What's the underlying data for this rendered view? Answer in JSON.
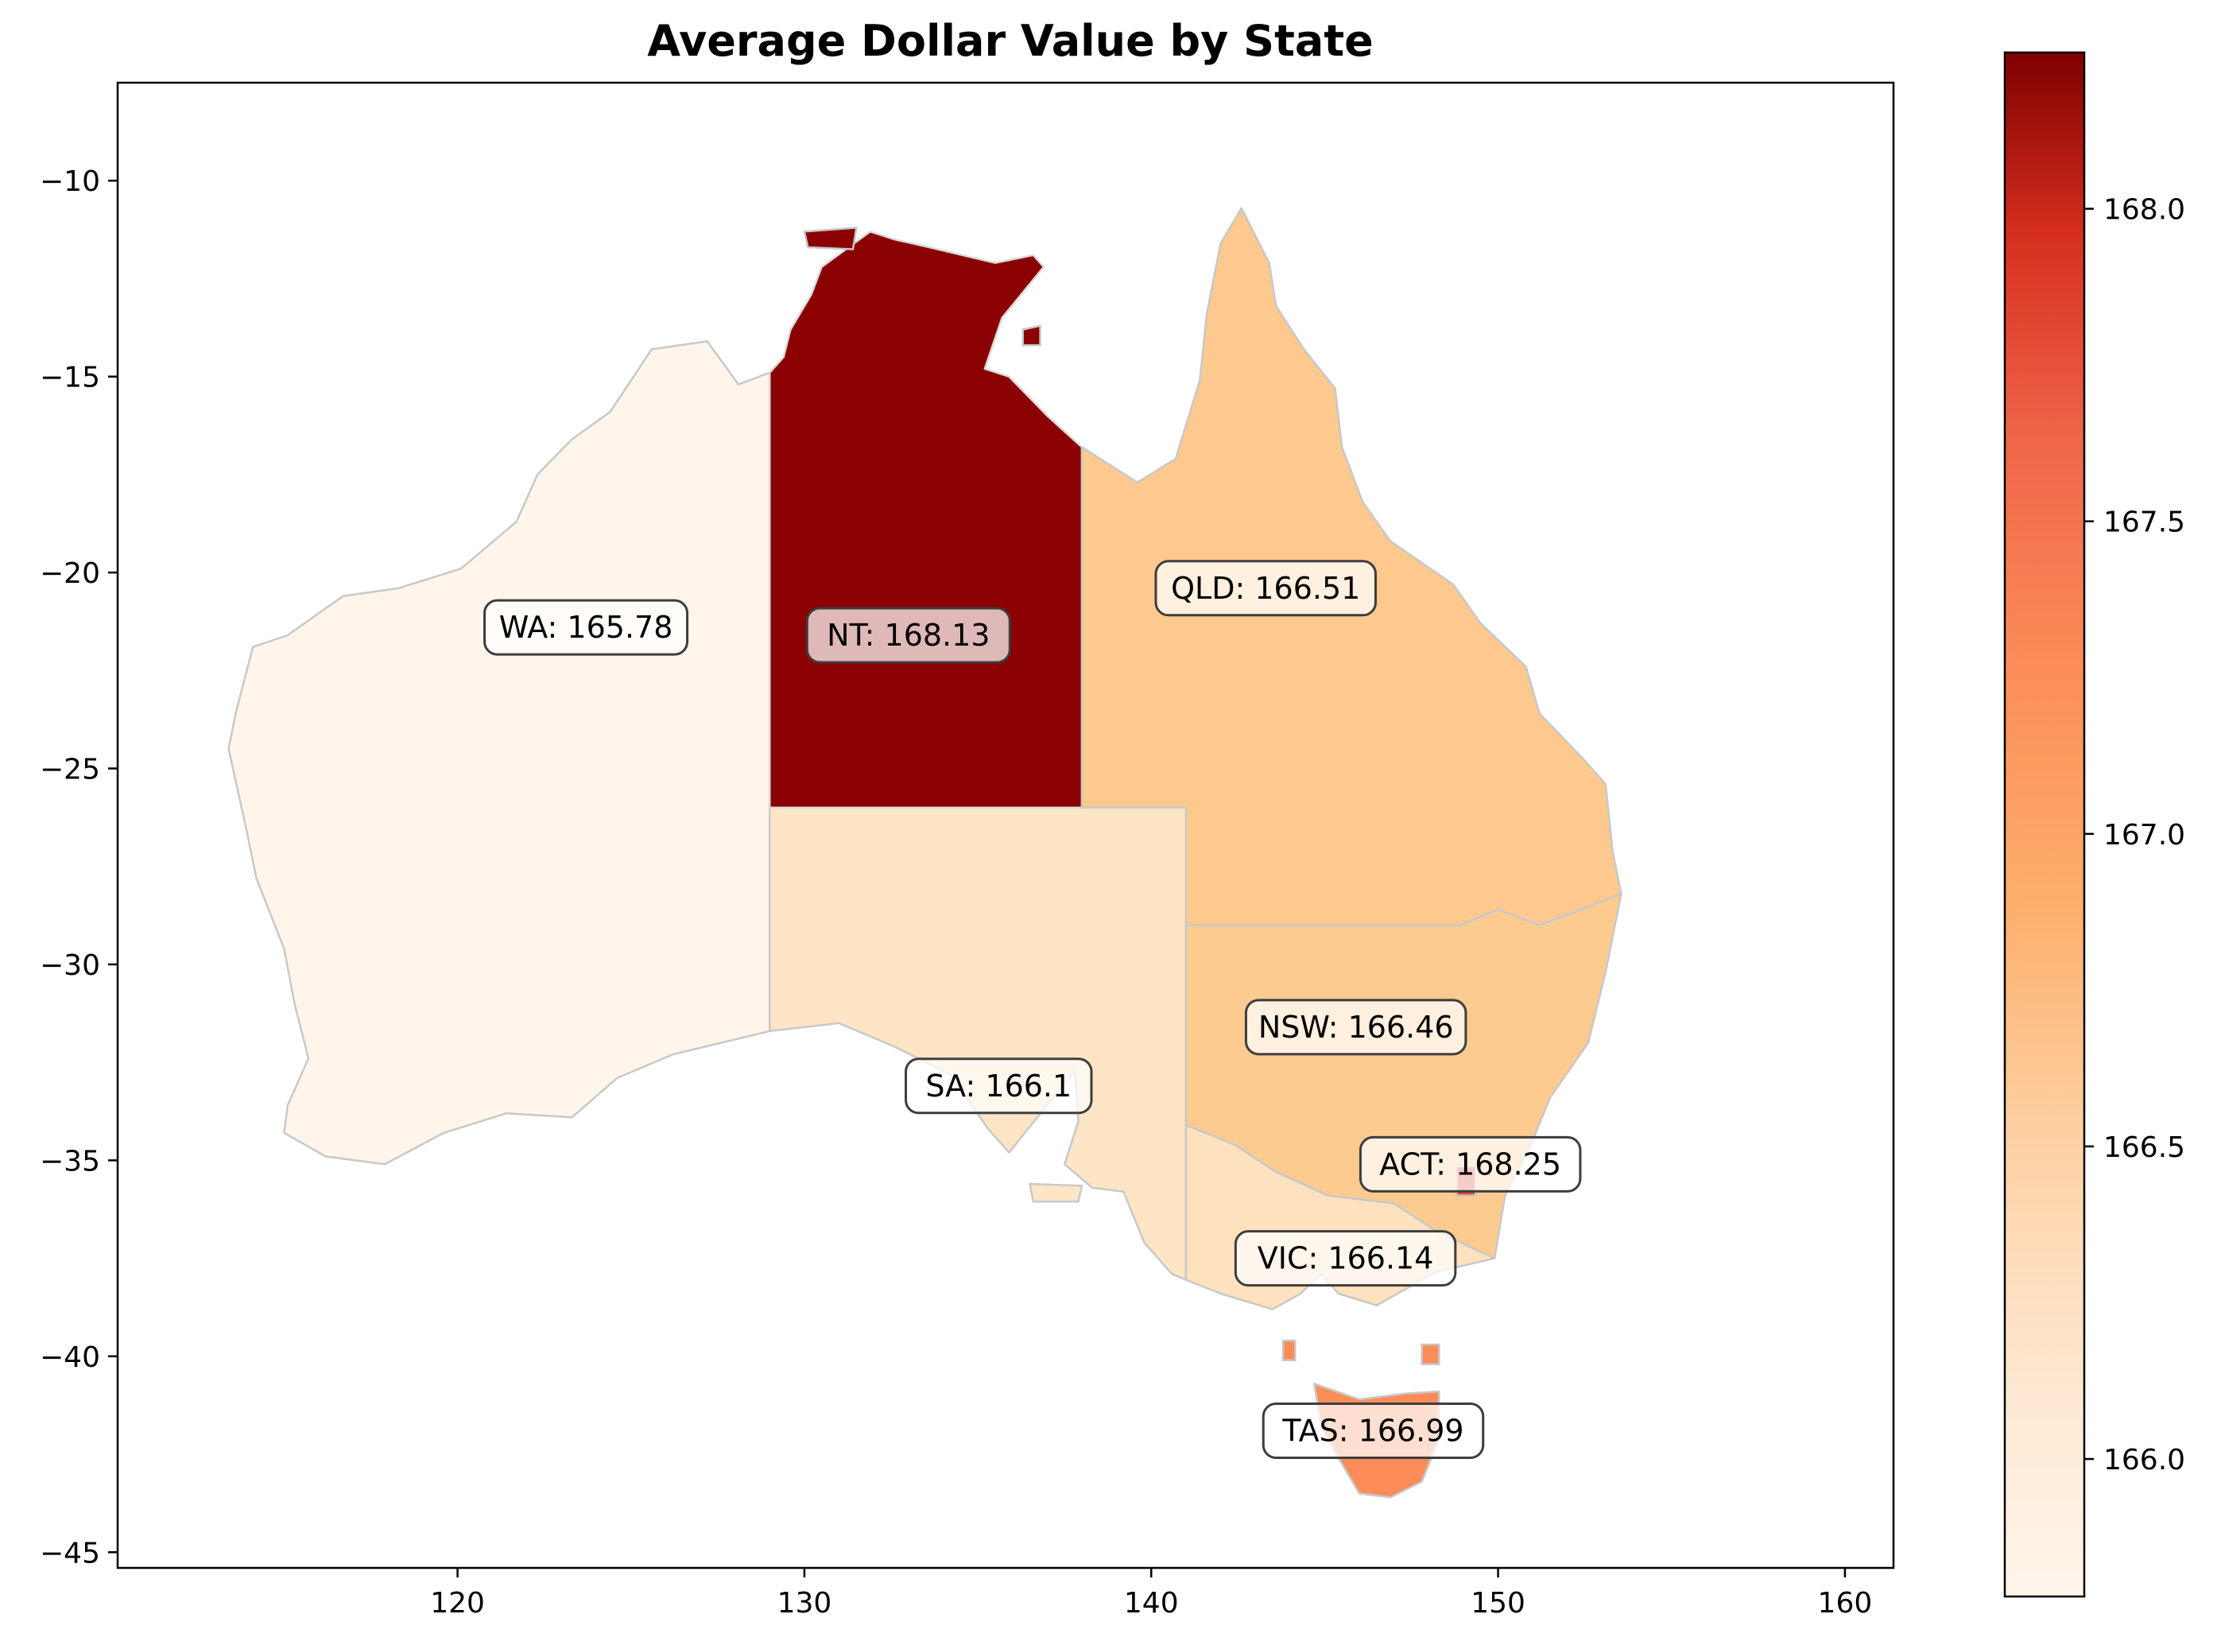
{
  "chart_data": {
    "type": "choropleth",
    "title": "Average Dollar Value by State",
    "xlabel": "",
    "ylabel": "",
    "xlim": [
      110.2,
      161.4
    ],
    "ylim": [
      -45.4,
      -7.5
    ],
    "x_ticks": [
      120,
      130,
      140,
      150,
      160
    ],
    "y_ticks": [
      -10,
      -15,
      -20,
      -25,
      -30,
      -35,
      -40,
      -45
    ],
    "x_tick_labels": [
      "120",
      "130",
      "140",
      "150",
      "160"
    ],
    "y_tick_labels": [
      "−10",
      "−15",
      "−20",
      "−25",
      "−30",
      "−35",
      "−40",
      "−45"
    ],
    "grid": false,
    "colormap": "OrRd",
    "colorbar": {
      "vmin": 165.78,
      "vmax": 168.25,
      "ticks": [
        166.0,
        166.5,
        167.0,
        167.5,
        168.0
      ],
      "tick_labels": [
        "166.0",
        "166.5",
        "167.0",
        "167.5",
        "168.0"
      ],
      "placement": "right"
    },
    "series": [
      {
        "state": "WA",
        "value": 165.78,
        "label": "WA: 165.78",
        "label_lon": 123.7,
        "label_lat": -21.4,
        "color": "#fff5eb"
      },
      {
        "state": "NT",
        "value": 168.13,
        "label": "NT: 168.13",
        "label_lon": 133.0,
        "label_lat": -21.6,
        "color": "#8b0000"
      },
      {
        "state": "QLD",
        "value": 166.51,
        "label": "QLD: 166.51",
        "label_lon": 143.3,
        "label_lat": -20.4,
        "color": "#fdc98e"
      },
      {
        "state": "SA",
        "value": 166.1,
        "label": "SA: 166.1",
        "label_lon": 135.6,
        "label_lat": -33.1,
        "color": "#fee5c5"
      },
      {
        "state": "NSW",
        "value": 166.46,
        "label": "NSW: 166.46",
        "label_lon": 145.9,
        "label_lat": -31.6,
        "color": "#fdca90"
      },
      {
        "state": "ACT",
        "value": 168.25,
        "label": "ACT: 168.25",
        "label_lon": 149.2,
        "label_lat": -35.1,
        "color": "#e34a33"
      },
      {
        "state": "VIC",
        "value": 166.14,
        "label": "VIC: 166.14",
        "label_lon": 145.6,
        "label_lat": -37.5,
        "color": "#fee2bd"
      },
      {
        "state": "TAS",
        "value": 166.99,
        "label": "TAS: 166.99",
        "label_lon": 146.4,
        "label_lat": -41.9,
        "color": "#fc8d59"
      }
    ]
  }
}
